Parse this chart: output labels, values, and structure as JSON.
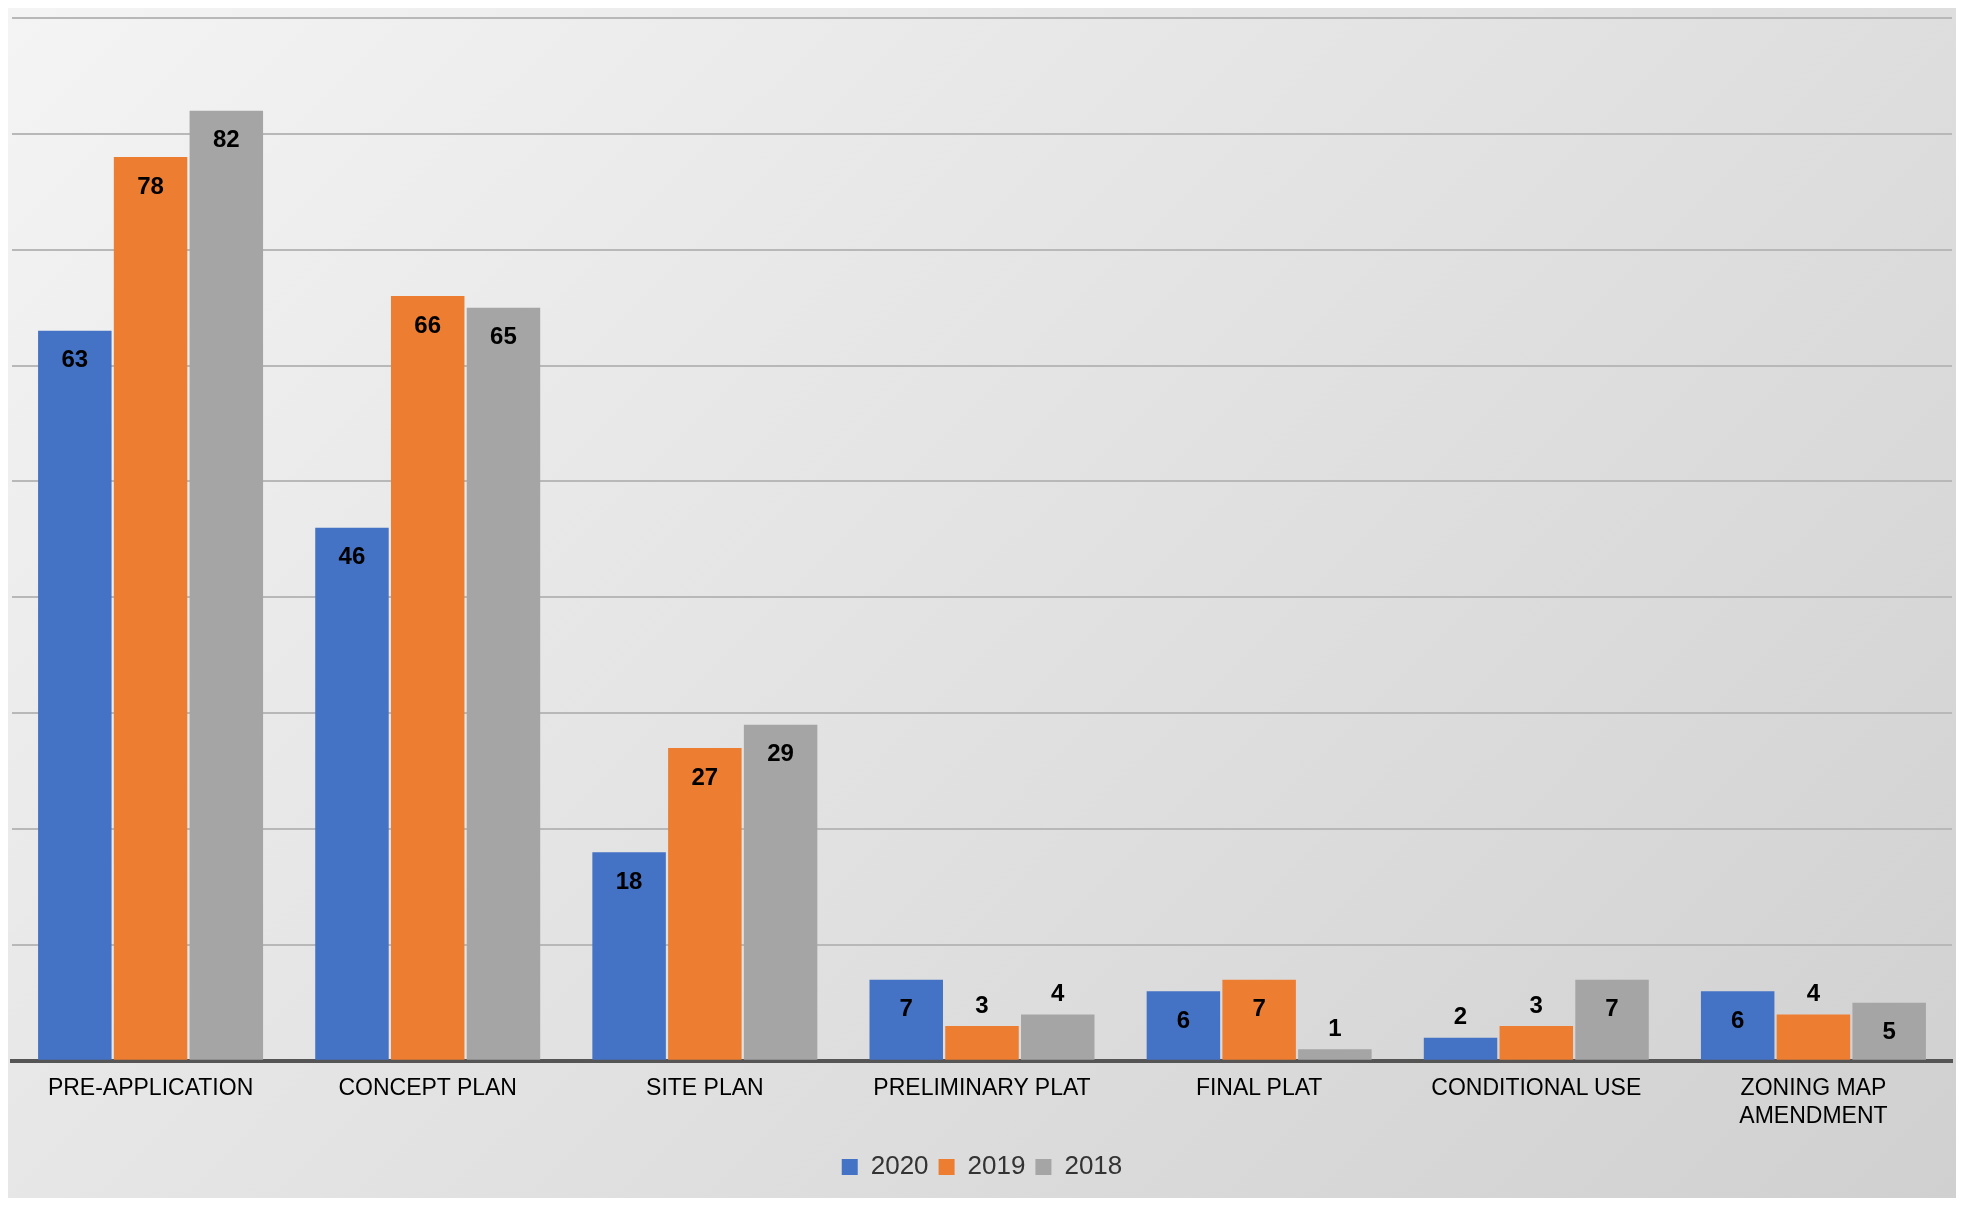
{
  "chart_data": {
    "type": "bar",
    "categories": [
      "PRE-APPLICATION",
      "CONCEPT PLAN",
      "SITE PLAN",
      "PRELIMINARY PLAT",
      "FINAL PLAT",
      "CONDITIONAL USE",
      "ZONING MAP AMENDMENT"
    ],
    "series": [
      {
        "name": "2020",
        "color": "#4472c4",
        "values": [
          63,
          46,
          18,
          7,
          6,
          2,
          6
        ]
      },
      {
        "name": "2019",
        "color": "#ed7d31",
        "values": [
          78,
          66,
          27,
          3,
          7,
          3,
          4
        ]
      },
      {
        "name": "2018",
        "color": "#a5a5a5",
        "values": [
          82,
          65,
          29,
          4,
          1,
          7,
          5
        ]
      }
    ],
    "tick_labels": "x",
    "grid": "y",
    "legend": "bottom",
    "data_labels": true
  }
}
